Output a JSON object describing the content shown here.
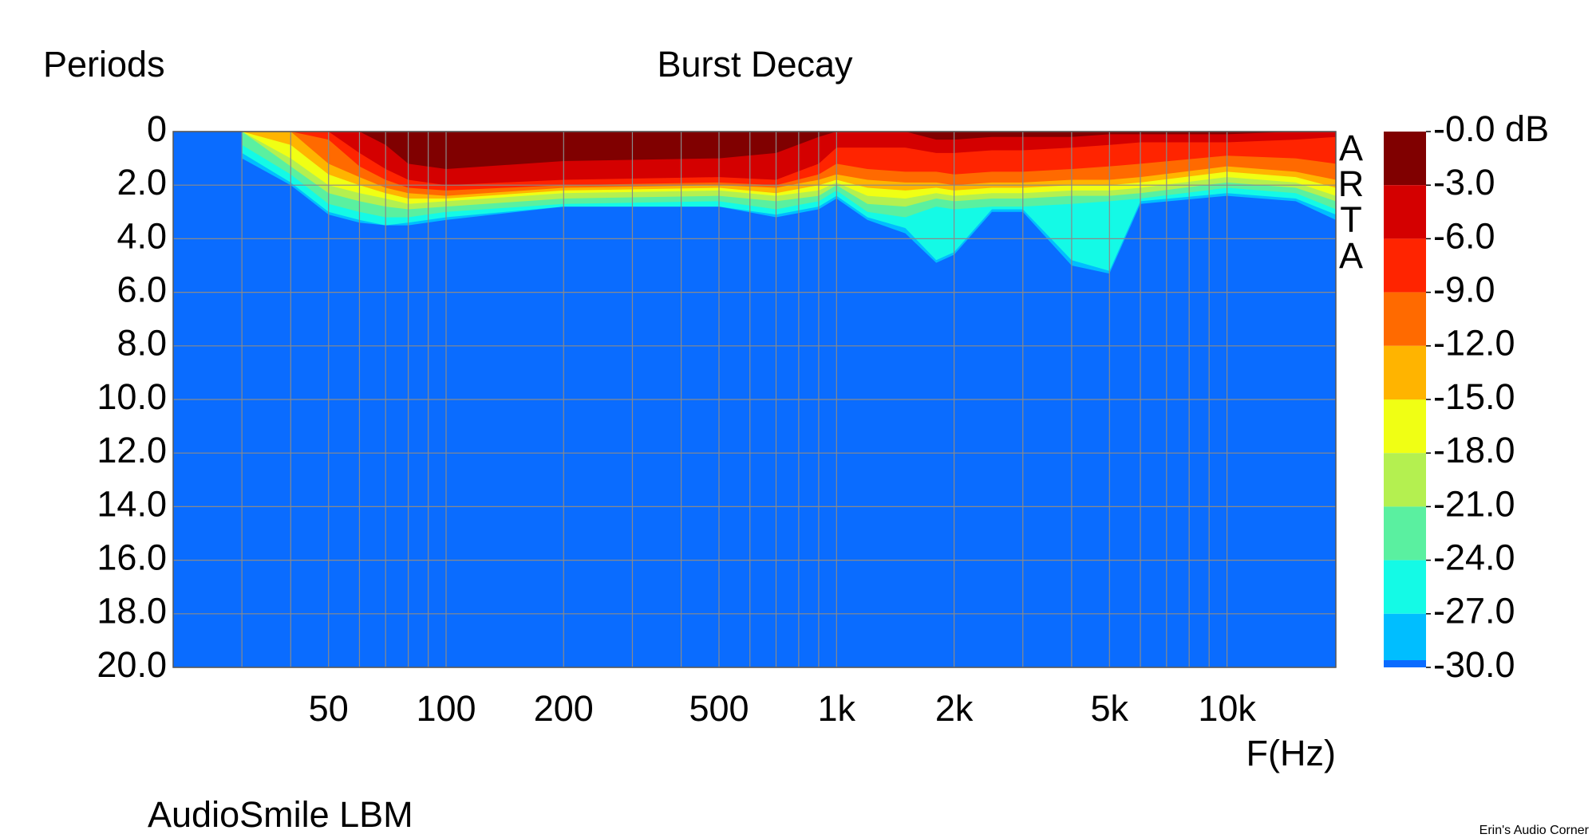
{
  "chart_data": {
    "type": "contour",
    "title": "Burst Decay",
    "y_label": "Periods",
    "x_label": "F(Hz)",
    "watermark": [
      "A",
      "R",
      "T",
      "A"
    ],
    "footer": "AudioSmile LBM",
    "credit": "Erin's Audio Corner",
    "log_x": true,
    "xlim": [
      20,
      19000
    ],
    "xticks": [
      50,
      100,
      200,
      500,
      {
        "value": 1000,
        "label": "1k"
      },
      {
        "value": 2000,
        "label": "2k"
      },
      {
        "value": 5000,
        "label": "5k"
      },
      {
        "value": 10000,
        "label": "10k"
      }
    ],
    "xgrid": [
      30,
      40,
      60,
      70,
      80,
      90,
      300,
      400,
      600,
      700,
      800,
      900,
      3000,
      4000,
      6000,
      7000,
      8000,
      9000
    ],
    "ylim": [
      0,
      20
    ],
    "y_inverted": true,
    "yticks": [
      0,
      {
        "value": 2,
        "label": "2.0"
      },
      {
        "value": 4,
        "label": "4.0"
      },
      {
        "value": 6,
        "label": "6.0"
      },
      {
        "value": 8,
        "label": "8.0"
      },
      {
        "value": 10,
        "label": "10.0"
      },
      {
        "value": 12,
        "label": "12.0"
      },
      {
        "value": 14,
        "label": "14.0"
      },
      {
        "value": 16,
        "label": "16.0"
      },
      {
        "value": 18,
        "label": "18.0"
      },
      {
        "value": 20,
        "label": "20.0"
      }
    ],
    "grid": true,
    "background": "#0a6cff",
    "clim": [
      -30,
      0
    ],
    "colorbar": {
      "ticks": [
        {
          "value": 0,
          "label": "-0.0 dB"
        },
        {
          "value": -3,
          "label": "-3.0"
        },
        {
          "value": -6,
          "label": "-6.0"
        },
        {
          "value": -9,
          "label": "-9.0"
        },
        {
          "value": -12,
          "label": "-12.0"
        },
        {
          "value": -15,
          "label": "-15.0"
        },
        {
          "value": -18,
          "label": "-18.0"
        },
        {
          "value": -21,
          "label": "-21.0"
        },
        {
          "value": -24,
          "label": "-24.0"
        },
        {
          "value": -27,
          "label": "-27.0"
        },
        {
          "value": -30,
          "label": "-30.0"
        }
      ],
      "colors": [
        "#800000",
        "#d40000",
        "#ff2400",
        "#ff6a00",
        "#ffb400",
        "#f0ff14",
        "#b4f050",
        "#5af0a0",
        "#14fae6",
        "#00beff",
        "#0a6cff"
      ]
    },
    "x": [
      30,
      40,
      50,
      60,
      70,
      80,
      100,
      200,
      500,
      700,
      900,
      1000,
      1200,
      1500,
      1800,
      2000,
      2500,
      3000,
      4000,
      5000,
      6000,
      10000,
      15000,
      19000
    ],
    "contours": [
      {
        "values": [
          0,
          0,
          0,
          0,
          0.5,
          1.2,
          1.4,
          1.1,
          1.0,
          0.8,
          0.2,
          0,
          0,
          0,
          0.3,
          0.3,
          0.2,
          0.2,
          0.2,
          0.1,
          0.1,
          0.1,
          0,
          0
        ]
      },
      {
        "values": [
          0,
          0,
          0,
          0.8,
          1.4,
          1.8,
          2.0,
          1.8,
          1.7,
          1.8,
          1.2,
          0.6,
          0.6,
          0.6,
          0.8,
          0.8,
          0.7,
          0.7,
          0.6,
          0.5,
          0.4,
          0.4,
          0.3,
          0.2
        ]
      },
      {
        "values": [
          0,
          0,
          0.3,
          1.3,
          1.8,
          2.1,
          2.2,
          2.0,
          1.9,
          2.0,
          1.6,
          1.2,
          1.4,
          1.5,
          1.5,
          1.6,
          1.5,
          1.5,
          1.4,
          1.3,
          1.2,
          0.9,
          1.0,
          1.2
        ]
      },
      {
        "values": [
          0,
          0,
          1.2,
          1.7,
          2.1,
          2.3,
          2.4,
          2.1,
          2.0,
          2.1,
          1.8,
          1.6,
          1.8,
          1.9,
          1.9,
          2.0,
          1.9,
          1.9,
          1.8,
          1.8,
          1.7,
          1.3,
          1.5,
          1.8
        ]
      },
      {
        "values": [
          0,
          0.5,
          1.6,
          2.0,
          2.3,
          2.5,
          2.5,
          2.2,
          2.1,
          2.3,
          2.0,
          1.8,
          2.1,
          2.2,
          2.1,
          2.2,
          2.1,
          2.1,
          2.0,
          2.0,
          1.9,
          1.5,
          1.7,
          2.1
        ]
      },
      {
        "values": [
          0,
          1.0,
          2.0,
          2.3,
          2.5,
          2.7,
          2.6,
          2.3,
          2.2,
          2.4,
          2.2,
          1.9,
          2.4,
          2.5,
          2.3,
          2.4,
          2.3,
          2.3,
          2.2,
          2.2,
          2.1,
          1.7,
          1.9,
          2.4
        ]
      },
      {
        "values": [
          0,
          1.3,
          2.3,
          2.6,
          2.8,
          2.9,
          2.8,
          2.5,
          2.4,
          2.6,
          2.4,
          2.0,
          2.7,
          2.8,
          2.5,
          2.6,
          2.5,
          2.5,
          2.4,
          2.4,
          2.3,
          1.9,
          2.1,
          2.6
        ]
      },
      {
        "values": [
          0.5,
          1.6,
          2.7,
          3.0,
          3.2,
          3.2,
          3.0,
          2.7,
          2.6,
          2.9,
          2.6,
          2.2,
          3.0,
          3.2,
          2.8,
          2.9,
          2.8,
          2.8,
          2.7,
          2.6,
          2.5,
          2.1,
          2.3,
          2.9
        ]
      },
      {
        "values": [
          0.8,
          1.9,
          3.0,
          3.3,
          3.5,
          3.4,
          3.2,
          2.8,
          2.8,
          3.1,
          2.8,
          2.4,
          3.2,
          3.6,
          4.8,
          4.5,
          2.9,
          2.9,
          4.8,
          5.2,
          2.6,
          2.3,
          2.5,
          3.1
        ]
      },
      {
        "values": [
          1.0,
          2.0,
          3.1,
          3.4,
          3.5,
          3.5,
          3.3,
          2.8,
          2.8,
          3.2,
          2.9,
          2.5,
          3.3,
          3.8,
          4.9,
          4.6,
          3.0,
          3.0,
          5.0,
          5.3,
          2.7,
          2.4,
          2.6,
          3.3
        ]
      }
    ]
  }
}
